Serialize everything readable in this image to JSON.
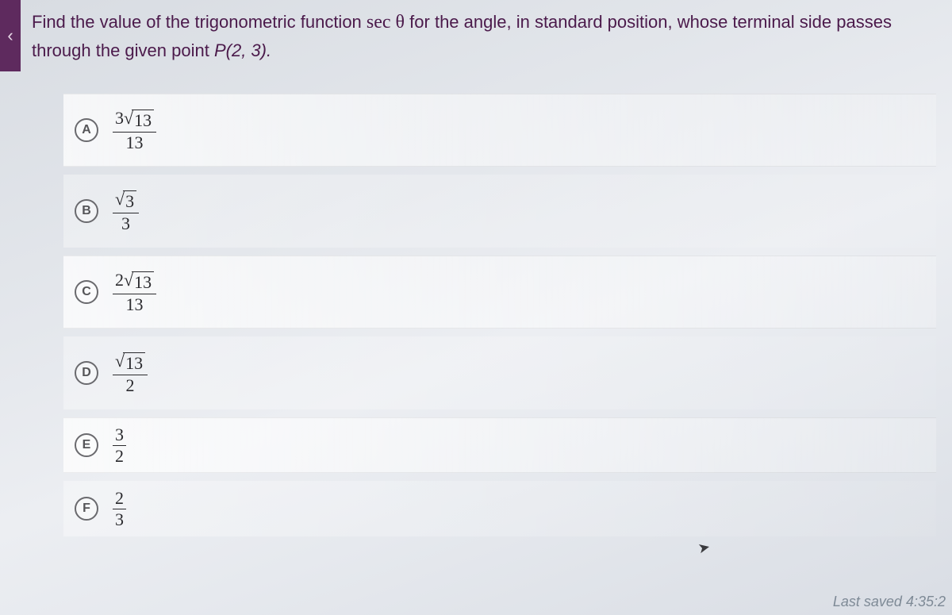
{
  "question": {
    "prefix": "Find the value of the trigonometric function ",
    "fn": "sec θ",
    "mid": " for the angle, in standard position, whose terminal side passes through the given point ",
    "point": "P(2, 3).",
    "suffix": ""
  },
  "options": [
    {
      "letter": "A",
      "kind": "frac_sqrt",
      "coef": "3",
      "rad": "13",
      "den": "13"
    },
    {
      "letter": "B",
      "kind": "frac_sqrt",
      "coef": "",
      "rad": "3",
      "den": "3"
    },
    {
      "letter": "C",
      "kind": "frac_sqrt",
      "coef": "2",
      "rad": "13",
      "den": "13"
    },
    {
      "letter": "D",
      "kind": "frac_sqrt",
      "coef": "",
      "rad": "13",
      "den": "2"
    },
    {
      "letter": "E",
      "kind": "frac",
      "num": "3",
      "den": "2"
    },
    {
      "letter": "F",
      "kind": "frac",
      "num": "2",
      "den": "3"
    }
  ],
  "footer": {
    "last_saved": "Last saved 4:35:2"
  },
  "style": {
    "accent": "#5e2a5e",
    "text_color": "#4b1a4b",
    "math_color": "#2a2a2e"
  }
}
